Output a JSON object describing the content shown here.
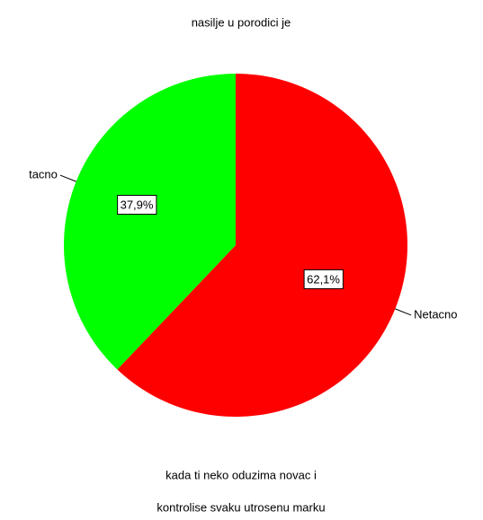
{
  "chart_data": {
    "type": "pie",
    "title": "nasilje u porodici je",
    "categories": [
      "Netacno",
      "tacno"
    ],
    "values": [
      62.1,
      37.9
    ],
    "value_labels": [
      "62,1%",
      "37,9%"
    ],
    "colors": [
      "#ff0000",
      "#00ff00"
    ],
    "footnote_lines": [
      "kada ti neko oduzima novac i",
      "kontrolise svaku utrosenu marku"
    ]
  }
}
